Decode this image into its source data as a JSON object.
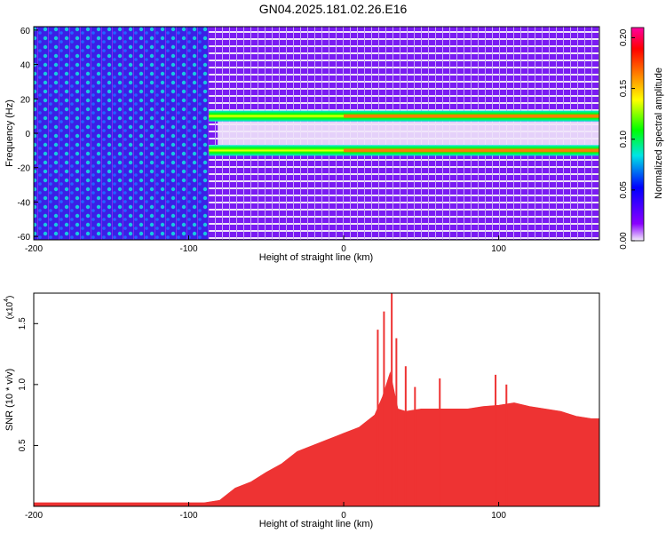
{
  "title": "GN04.2025.181.02.26.E16",
  "chart_data": [
    {
      "type": "heatmap",
      "xlabel": "Height of straight line (km)",
      "ylabel": "Frequency (Hz)",
      "xlim": [
        -200,
        165
      ],
      "ylim": [
        -62,
        62
      ],
      "x_ticks": [
        -200,
        -100,
        0,
        100
      ],
      "y_ticks": [
        -60,
        -40,
        -20,
        0,
        20,
        40,
        60
      ],
      "colorbar": {
        "label": "Normalized spectral amplitude",
        "range": [
          0.0,
          0.21
        ],
        "ticks": [
          "0.00",
          "0.05",
          "0.10",
          "0.15",
          "0.20"
        ],
        "colors": [
          "#f4eefc",
          "#8a00ff",
          "#0000ff",
          "#00e5e5",
          "#00ff00",
          "#ffff00",
          "#ff8000",
          "#ff0000",
          "#ff00a0"
        ]
      },
      "bands": [
        {
          "freq_hz": 10,
          "x_start": -87,
          "x_end": 165,
          "peak_amplitude": 0.2
        },
        {
          "freq_hz": -10,
          "x_start": -87,
          "x_end": 165,
          "peak_amplitude": 0.2
        }
      ]
    },
    {
      "type": "area",
      "xlabel": "Height of straight line (km)",
      "ylabel": "SNR (10 * v/v)",
      "multiplier_label": "(x10",
      "multiplier_exp": "4",
      "xlim": [
        -200,
        165
      ],
      "ylim": [
        0,
        1.75
      ],
      "x_ticks": [
        -200,
        -100,
        0,
        100
      ],
      "y_ticks": [
        "0.5",
        "1.0",
        "1.5"
      ],
      "color": "#ee3333",
      "x": [
        -200,
        -180,
        -160,
        -140,
        -120,
        -100,
        -90,
        -80,
        -75,
        -70,
        -60,
        -50,
        -40,
        -30,
        -20,
        -10,
        0,
        10,
        15,
        20,
        25,
        30,
        35,
        40,
        50,
        60,
        70,
        80,
        90,
        100,
        110,
        120,
        130,
        140,
        150,
        160,
        165
      ],
      "y": [
        0.03,
        0.03,
        0.03,
        0.03,
        0.03,
        0.03,
        0.03,
        0.05,
        0.1,
        0.15,
        0.2,
        0.28,
        0.35,
        0.45,
        0.5,
        0.55,
        0.6,
        0.65,
        0.7,
        0.75,
        0.9,
        1.1,
        0.8,
        0.78,
        0.8,
        0.8,
        0.8,
        0.8,
        0.82,
        0.83,
        0.85,
        0.82,
        0.8,
        0.78,
        0.74,
        0.72,
        0.72
      ],
      "spikes": [
        {
          "x": 22,
          "y": 1.45
        },
        {
          "x": 26,
          "y": 1.6
        },
        {
          "x": 31,
          "y": 1.75
        },
        {
          "x": 34,
          "y": 1.38
        },
        {
          "x": 40,
          "y": 1.15
        },
        {
          "x": 46,
          "y": 0.98
        },
        {
          "x": 62,
          "y": 1.05
        },
        {
          "x": 98,
          "y": 1.08
        },
        {
          "x": 105,
          "y": 1.0
        }
      ]
    }
  ]
}
